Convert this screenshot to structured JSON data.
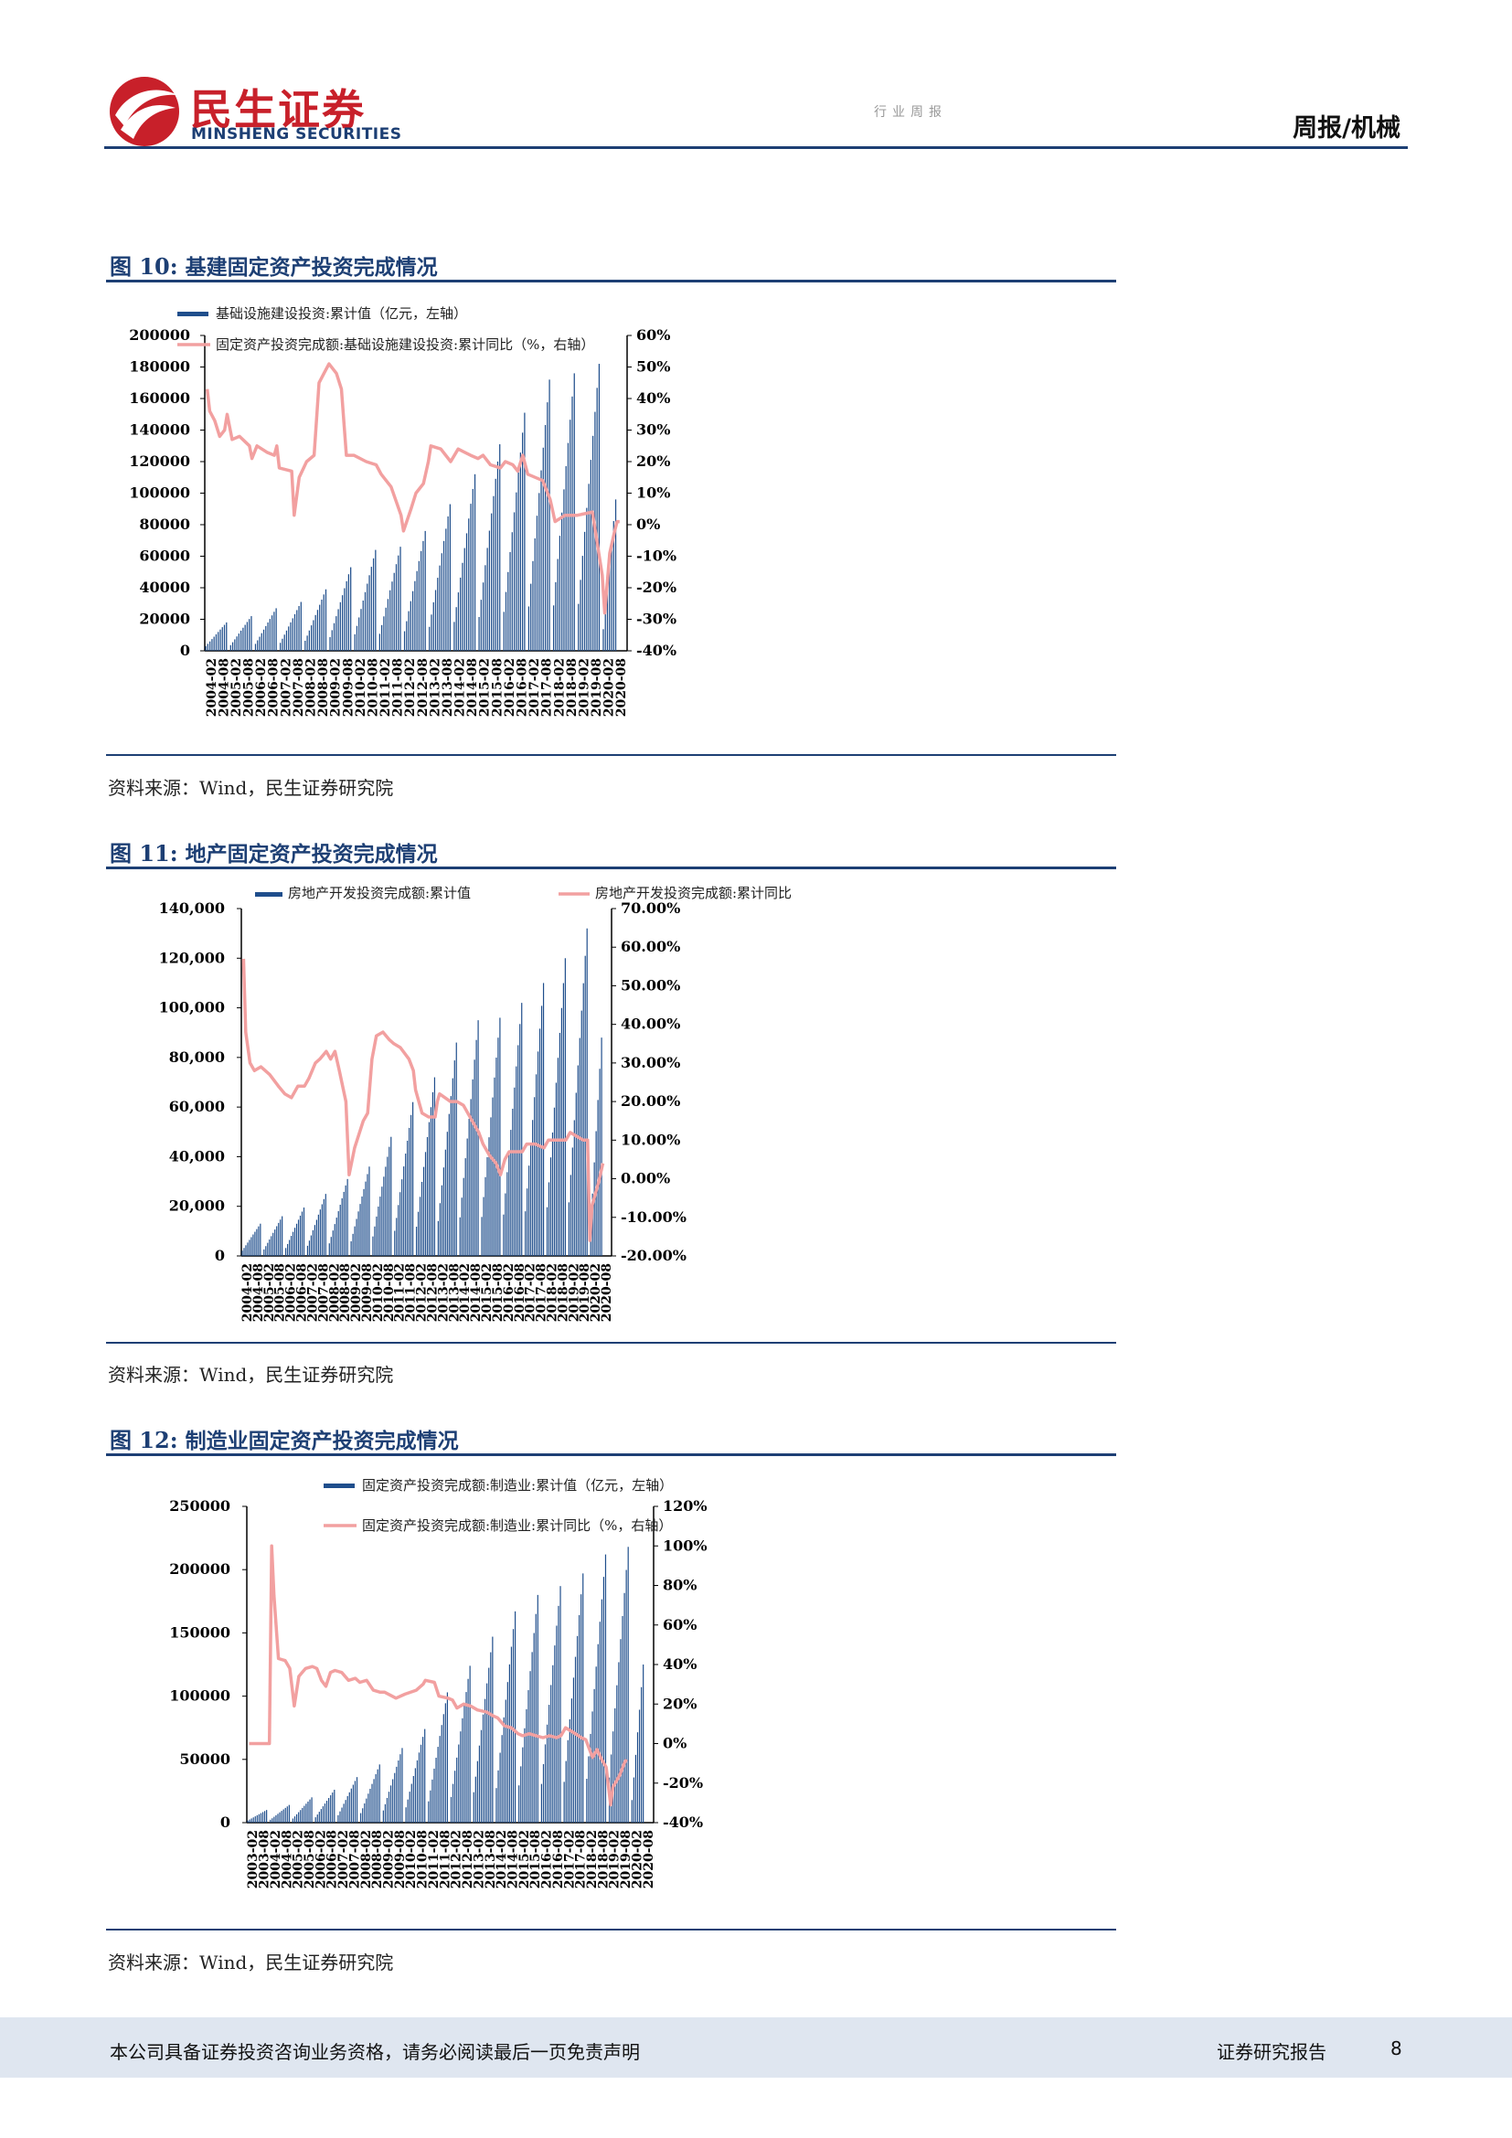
{
  "header": {
    "brand_cn": "民生证券",
    "brand_en": "MINSHENG SECURITIES",
    "faint_text": "行业周报",
    "report_type": "周报/机械"
  },
  "figures": [
    {
      "label": "图 10:",
      "title": "基建固定资产投资完成情况",
      "source": "资料来源：Wind，民生证券研究院"
    },
    {
      "label": "图 11:",
      "title": "地产固定资产投资完成情况",
      "source": "资料来源：Wind，民生证券研究院"
    },
    {
      "label": "图 12:",
      "title": "制造业固定资产投资完成情况",
      "source": "资料来源：Wind，民生证券研究院"
    }
  ],
  "chart_data": [
    {
      "type": "bar",
      "secondary_type": "line",
      "series": [
        {
          "name": "基础设施建设投资:累计值（亿元，左轴）",
          "axis": "left",
          "color": "#1f4e8c",
          "yearly_peak": [
            18000,
            22000,
            27000,
            31000,
            39000,
            53000,
            64000,
            66000,
            76000,
            93000,
            112000,
            131000,
            151000,
            172000,
            176000,
            182000
          ],
          "last_value": 96000
        },
        {
          "name": "固定资产投资完成额:基础设施建设投资:累计同比（%，右轴）",
          "axis": "right",
          "color": "#f2a0a0",
          "values": [
            [
              2004.1,
              43
            ],
            [
              2004.2,
              36
            ],
            [
              2004.4,
              33
            ],
            [
              2004.6,
              28
            ],
            [
              2004.8,
              30
            ],
            [
              2004.9,
              35
            ],
            [
              2005.1,
              27
            ],
            [
              2005.4,
              28
            ],
            [
              2005.8,
              25
            ],
            [
              2005.9,
              21
            ],
            [
              2006.1,
              25
            ],
            [
              2006.5,
              23
            ],
            [
              2006.8,
              22
            ],
            [
              2006.9,
              25
            ],
            [
              2007.0,
              18
            ],
            [
              2007.5,
              17
            ],
            [
              2007.6,
              3
            ],
            [
              2007.8,
              15
            ],
            [
              2008.1,
              20
            ],
            [
              2008.4,
              22
            ],
            [
              2008.6,
              45
            ],
            [
              2008.8,
              48
            ],
            [
              2009.0,
              51
            ],
            [
              2009.3,
              48
            ],
            [
              2009.5,
              43
            ],
            [
              2009.7,
              22
            ],
            [
              2010.0,
              22
            ],
            [
              2010.5,
              20
            ],
            [
              2010.9,
              19
            ],
            [
              2011.1,
              16
            ],
            [
              2011.5,
              12
            ],
            [
              2011.9,
              3
            ],
            [
              2012.0,
              -2
            ],
            [
              2012.3,
              5
            ],
            [
              2012.5,
              10
            ],
            [
              2012.8,
              13
            ],
            [
              2013.0,
              20
            ],
            [
              2013.1,
              25
            ],
            [
              2013.5,
              24
            ],
            [
              2013.9,
              20
            ],
            [
              2014.2,
              24
            ],
            [
              2014.7,
              22
            ],
            [
              2015.0,
              21
            ],
            [
              2015.2,
              22
            ],
            [
              2015.5,
              19
            ],
            [
              2015.9,
              18
            ],
            [
              2016.1,
              20
            ],
            [
              2016.4,
              19
            ],
            [
              2016.6,
              17
            ],
            [
              2016.8,
              22
            ],
            [
              2017.0,
              16
            ],
            [
              2017.6,
              14
            ],
            [
              2017.9,
              8
            ],
            [
              2018.1,
              1
            ],
            [
              2018.5,
              3
            ],
            [
              2019.0,
              3
            ],
            [
              2019.6,
              4
            ],
            [
              2020.0,
              -16
            ],
            [
              2020.1,
              -28
            ],
            [
              2020.3,
              -9
            ],
            [
              2020.5,
              -2
            ],
            [
              2020.6,
              1
            ],
            [
              2020.7,
              1
            ]
          ]
        }
      ],
      "x_tick_labels": [
        "2004-02",
        "2004-08",
        "2005-02",
        "2005-08",
        "2006-02",
        "2006-08",
        "2007-02",
        "2007-08",
        "2008-02",
        "2008-08",
        "2009-02",
        "2009-08",
        "2010-02",
        "2010-08",
        "2011-02",
        "2011-08",
        "2012-02",
        "2012-08",
        "2013-02",
        "2013-08",
        "2014-02",
        "2014-08",
        "2015-02",
        "2015-08",
        "2016-02",
        "2016-08",
        "2017-02",
        "2017-08",
        "2018-02",
        "2018-08",
        "2019-02",
        "2019-08",
        "2020-02",
        "2020-08"
      ],
      "y_left_ticks": [
        "200000",
        "180000",
        "160000",
        "140000",
        "120000",
        "100000",
        "80000",
        "60000",
        "40000",
        "20000",
        "0"
      ],
      "y_right_ticks": [
        "60%",
        "50%",
        "40%",
        "30%",
        "20%",
        "10%",
        "0%",
        "-10%",
        "-20%",
        "-30%",
        "-40%"
      ],
      "ylim_left": [
        0,
        200000
      ],
      "ylim_right": [
        -40,
        60
      ],
      "legend_position": "top"
    },
    {
      "type": "bar",
      "secondary_type": "line",
      "series": [
        {
          "name": "房地产开发投资完成额:累计值",
          "axis": "left",
          "color": "#1f4e8c",
          "yearly_peak": [
            13000,
            16000,
            19500,
            25000,
            31000,
            36000,
            48000,
            62000,
            72000,
            86000,
            95000,
            96000,
            102000,
            110000,
            120000,
            132000
          ],
          "last_value": 88000
        },
        {
          "name": "房地产开发投资完成额:累计同比",
          "axis": "right",
          "color": "#f2a0a0",
          "values": [
            [
              2004.1,
              57
            ],
            [
              2004.2,
              38
            ],
            [
              2004.4,
              30
            ],
            [
              2004.6,
              28
            ],
            [
              2004.9,
              29
            ],
            [
              2005.3,
              27
            ],
            [
              2005.7,
              24
            ],
            [
              2006.0,
              22
            ],
            [
              2006.3,
              21
            ],
            [
              2006.6,
              24
            ],
            [
              2006.9,
              24
            ],
            [
              2007.1,
              26
            ],
            [
              2007.4,
              30
            ],
            [
              2007.6,
              31
            ],
            [
              2007.9,
              33
            ],
            [
              2008.1,
              31
            ],
            [
              2008.3,
              33
            ],
            [
              2008.5,
              28
            ],
            [
              2008.8,
              20
            ],
            [
              2008.95,
              1
            ],
            [
              2009.2,
              8
            ],
            [
              2009.6,
              15
            ],
            [
              2009.8,
              17
            ],
            [
              2010.0,
              31
            ],
            [
              2010.2,
              37
            ],
            [
              2010.5,
              38
            ],
            [
              2010.8,
              36
            ],
            [
              2011.0,
              35
            ],
            [
              2011.3,
              34
            ],
            [
              2011.7,
              31
            ],
            [
              2011.9,
              28
            ],
            [
              2012.0,
              23
            ],
            [
              2012.3,
              17
            ],
            [
              2012.6,
              16
            ],
            [
              2012.9,
              16
            ],
            [
              2013.0,
              20
            ],
            [
              2013.1,
              22
            ],
            [
              2013.6,
              20
            ],
            [
              2013.9,
              20
            ],
            [
              2014.2,
              19
            ],
            [
              2014.6,
              15
            ],
            [
              2014.9,
              12
            ],
            [
              2015.1,
              9
            ],
            [
              2015.4,
              6
            ],
            [
              2015.7,
              4
            ],
            [
              2015.9,
              1
            ],
            [
              2016.1,
              5
            ],
            [
              2016.3,
              7
            ],
            [
              2016.6,
              7
            ],
            [
              2016.9,
              7
            ],
            [
              2017.1,
              9
            ],
            [
              2017.5,
              9
            ],
            [
              2017.9,
              8
            ],
            [
              2018.1,
              10
            ],
            [
              2018.5,
              10
            ],
            [
              2018.9,
              10
            ],
            [
              2019.1,
              12
            ],
            [
              2019.4,
              11
            ],
            [
              2019.7,
              10
            ],
            [
              2019.9,
              10
            ],
            [
              2020.0,
              -16
            ],
            [
              2020.1,
              -7
            ],
            [
              2020.4,
              -1
            ],
            [
              2020.6,
              4
            ]
          ]
        }
      ],
      "x_tick_labels": [
        "2004-02",
        "2004-08",
        "2005-02",
        "2005-08",
        "2006-02",
        "2006-08",
        "2007-02",
        "2007-08",
        "2008-02",
        "2008-08",
        "2009-02",
        "2009-08",
        "2010-02",
        "2010-08",
        "2011-02",
        "2011-08",
        "2012-02",
        "2012-08",
        "2013-02",
        "2013-08",
        "2014-02",
        "2014-08",
        "2015-02",
        "2015-08",
        "2016-02",
        "2016-08",
        "2017-02",
        "2017-08",
        "2018-02",
        "2018-08",
        "2019-02",
        "2019-08",
        "2020-02",
        "2020-08"
      ],
      "y_left_ticks": [
        "140,000",
        "120,000",
        "100,000",
        "80,000",
        "60,000",
        "40,000",
        "20,000",
        "0"
      ],
      "y_right_ticks": [
        "70.00%",
        "60.00%",
        "50.00%",
        "40.00%",
        "30.00%",
        "20.00%",
        "10.00%",
        "0.00%",
        "-10.00%",
        "-20.00%"
      ],
      "ylim_left": [
        0,
        140000
      ],
      "ylim_right": [
        -20,
        70
      ],
      "legend_position": "top"
    },
    {
      "type": "bar",
      "secondary_type": "line",
      "series": [
        {
          "name": "固定资产投资完成额:制造业:累计值（亿元，左轴）",
          "axis": "left",
          "color": "#1f4e8c",
          "yearly_peak": [
            10000,
            14000,
            20000,
            26000,
            36000,
            46000,
            59000,
            74000,
            103000,
            124000,
            147000,
            167000,
            180000,
            187000,
            197000,
            212000,
            218000
          ],
          "last_value": 125000
        },
        {
          "name": "固定资产投资完成额:制造业:累计同比（%，右轴）",
          "axis": "right",
          "color": "#f2a0a0",
          "values": [
            [
              2003.1,
              0
            ],
            [
              2003.5,
              0
            ],
            [
              2003.9,
              0
            ],
            [
              2004.0,
              0
            ],
            [
              2004.1,
              100
            ],
            [
              2004.2,
              75
            ],
            [
              2004.4,
              43
            ],
            [
              2004.7,
              42
            ],
            [
              2004.9,
              38
            ],
            [
              2005.1,
              19
            ],
            [
              2005.3,
              34
            ],
            [
              2005.6,
              38
            ],
            [
              2005.9,
              39
            ],
            [
              2006.1,
              38
            ],
            [
              2006.3,
              32
            ],
            [
              2006.5,
              29
            ],
            [
              2006.7,
              36
            ],
            [
              2006.9,
              37
            ],
            [
              2007.2,
              36
            ],
            [
              2007.5,
              32
            ],
            [
              2007.8,
              33
            ],
            [
              2008.0,
              31
            ],
            [
              2008.3,
              32
            ],
            [
              2008.6,
              27
            ],
            [
              2008.9,
              26
            ],
            [
              2009.1,
              26
            ],
            [
              2009.6,
              23
            ],
            [
              2010.0,
              25
            ],
            [
              2010.5,
              27
            ],
            [
              2010.8,
              30
            ],
            [
              2010.9,
              32
            ],
            [
              2011.3,
              31
            ],
            [
              2011.5,
              24
            ],
            [
              2011.9,
              23
            ],
            [
              2012.1,
              22
            ],
            [
              2012.3,
              18
            ],
            [
              2012.6,
              20
            ],
            [
              2012.9,
              19
            ],
            [
              2013.2,
              17
            ],
            [
              2013.6,
              16
            ],
            [
              2013.9,
              14
            ],
            [
              2014.1,
              13
            ],
            [
              2014.4,
              9
            ],
            [
              2014.7,
              8
            ],
            [
              2015.0,
              5
            ],
            [
              2015.2,
              4
            ],
            [
              2015.5,
              5
            ],
            [
              2015.8,
              4
            ],
            [
              2016.1,
              3
            ],
            [
              2016.4,
              4
            ],
            [
              2016.7,
              3
            ],
            [
              2016.9,
              4
            ],
            [
              2017.1,
              8
            ],
            [
              2017.4,
              6
            ],
            [
              2017.8,
              3
            ],
            [
              2018.0,
              2
            ],
            [
              2018.3,
              -7
            ],
            [
              2018.5,
              -3
            ],
            [
              2018.7,
              -8
            ],
            [
              2018.9,
              -12
            ],
            [
              2019.1,
              -31
            ],
            [
              2019.2,
              -22
            ],
            [
              2019.5,
              -16
            ],
            [
              2019.7,
              -10
            ],
            [
              2019.8,
              -8
            ]
          ]
        }
      ],
      "x_tick_labels": [
        "2003-02",
        "2003-08",
        "2004-02",
        "2004-08",
        "2005-02",
        "2005-08",
        "2006-02",
        "2006-08",
        "2007-02",
        "2007-08",
        "2008-02",
        "2008-08",
        "2009-02",
        "2009-08",
        "2010-02",
        "2010-08",
        "2011-02",
        "2011-08",
        "2012-02",
        "2012-08",
        "2013-02",
        "2013-08",
        "2014-02",
        "2014-08",
        "2015-02",
        "2015-08",
        "2016-02",
        "2016-08",
        "2017-02",
        "2017-08",
        "2018-02",
        "2018-08",
        "2019-02",
        "2019-08",
        "2020-02",
        "2020-08"
      ],
      "y_left_ticks": [
        "250000",
        "200000",
        "150000",
        "100000",
        "50000",
        "0"
      ],
      "y_right_ticks": [
        "120%",
        "100%",
        "80%",
        "60%",
        "40%",
        "20%",
        "0%",
        "-20%",
        "-40%"
      ],
      "ylim_left": [
        0,
        250000
      ],
      "ylim_right": [
        -40,
        120
      ],
      "legend_position": "top"
    }
  ],
  "footer": {
    "disclaimer": "本公司具备证券投资咨询业务资格，请务必阅读最后一页免责声明",
    "report_label": "证券研究报告",
    "page_number": "8"
  }
}
